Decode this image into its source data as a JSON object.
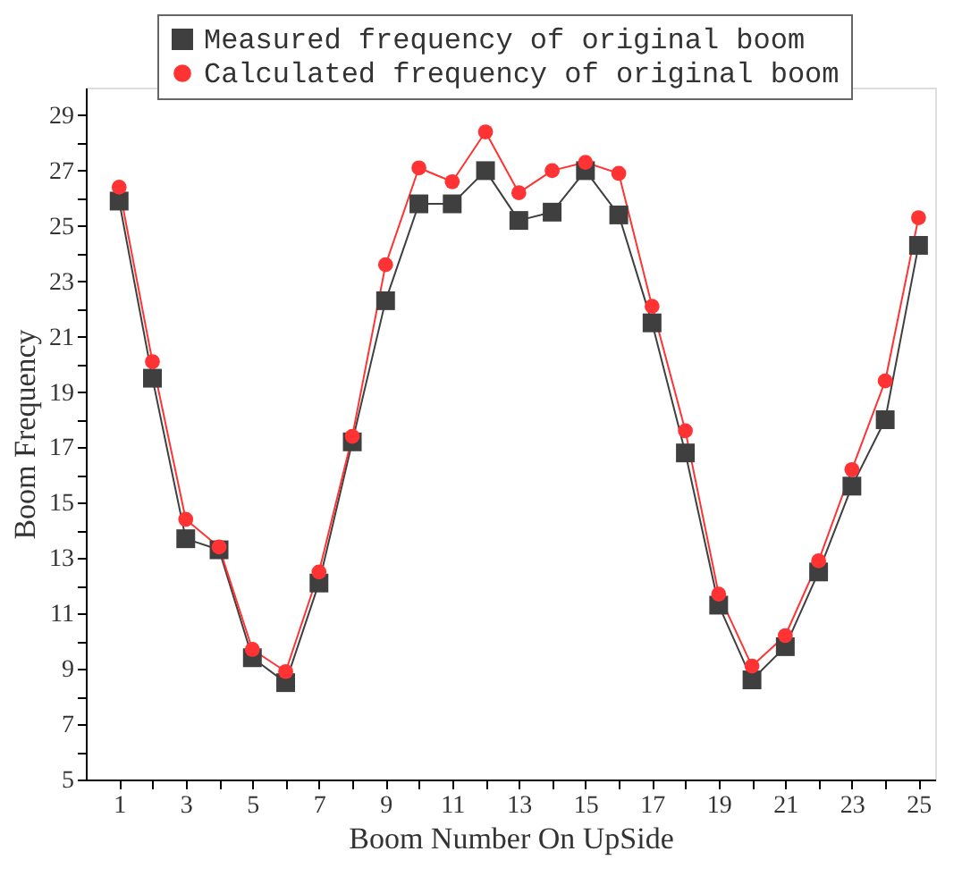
{
  "chart_data": {
    "type": "line",
    "xlabel": "Boom Number On UpSide",
    "ylabel": "Boom Frequency",
    "x": [
      1,
      2,
      3,
      4,
      5,
      6,
      7,
      8,
      9,
      10,
      11,
      12,
      13,
      14,
      15,
      16,
      17,
      18,
      19,
      20,
      21,
      22,
      23,
      24,
      25
    ],
    "series": [
      {
        "name": "Measured frequency of original boom",
        "color": "#3f3f3f",
        "marker": "square",
        "values": [
          25.9,
          19.5,
          13.7,
          13.3,
          9.4,
          8.5,
          12.1,
          17.2,
          22.3,
          25.8,
          25.8,
          27.0,
          25.2,
          25.5,
          27.0,
          25.4,
          21.5,
          16.8,
          11.3,
          8.6,
          9.8,
          12.5,
          15.6,
          18.0,
          24.3
        ]
      },
      {
        "name": "Calculated frequency of original boom",
        "color": "#ff3333",
        "marker": "circle",
        "values": [
          26.4,
          20.1,
          14.4,
          13.4,
          9.7,
          8.9,
          12.5,
          17.4,
          23.6,
          27.1,
          26.6,
          28.4,
          26.2,
          27.0,
          27.3,
          26.9,
          22.1,
          17.6,
          11.7,
          9.1,
          10.2,
          12.9,
          16.2,
          19.4,
          25.3
        ]
      }
    ],
    "xlim": [
      0,
      25.5
    ],
    "xticks": [
      1,
      {
        "value": 2,
        "label": null
      },
      3,
      {
        "value": 4,
        "label": null
      },
      5,
      {
        "value": 6,
        "label": null
      },
      7,
      {
        "value": 8,
        "label": null
      },
      9,
      {
        "value": 10,
        "label": null
      },
      11,
      {
        "value": 12,
        "label": null
      },
      13,
      {
        "value": 14,
        "label": null
      },
      15,
      {
        "value": 16,
        "label": null
      },
      17,
      {
        "value": 18,
        "label": null
      },
      19,
      {
        "value": 20,
        "label": null
      },
      21,
      {
        "value": 22,
        "label": null
      },
      23,
      {
        "value": 24,
        "label": null
      },
      25
    ],
    "ylim": [
      5,
      30
    ],
    "yticks": [
      5,
      {
        "value": 6,
        "label": null
      },
      7,
      {
        "value": 8,
        "label": null
      },
      9,
      {
        "value": 10,
        "label": null
      },
      11,
      {
        "value": 12,
        "label": null
      },
      13,
      {
        "value": 14,
        "label": null
      },
      15,
      {
        "value": 16,
        "label": null
      },
      17,
      {
        "value": 18,
        "label": null
      },
      19,
      {
        "value": 20,
        "label": null
      },
      21,
      {
        "value": 22,
        "label": null
      },
      23,
      {
        "value": 24,
        "label": null
      },
      25,
      {
        "value": 26,
        "label": null
      },
      27,
      {
        "value": 28,
        "label": null
      },
      29
    ],
    "legend": "top right",
    "grid": false,
    "line_style": "solid"
  }
}
